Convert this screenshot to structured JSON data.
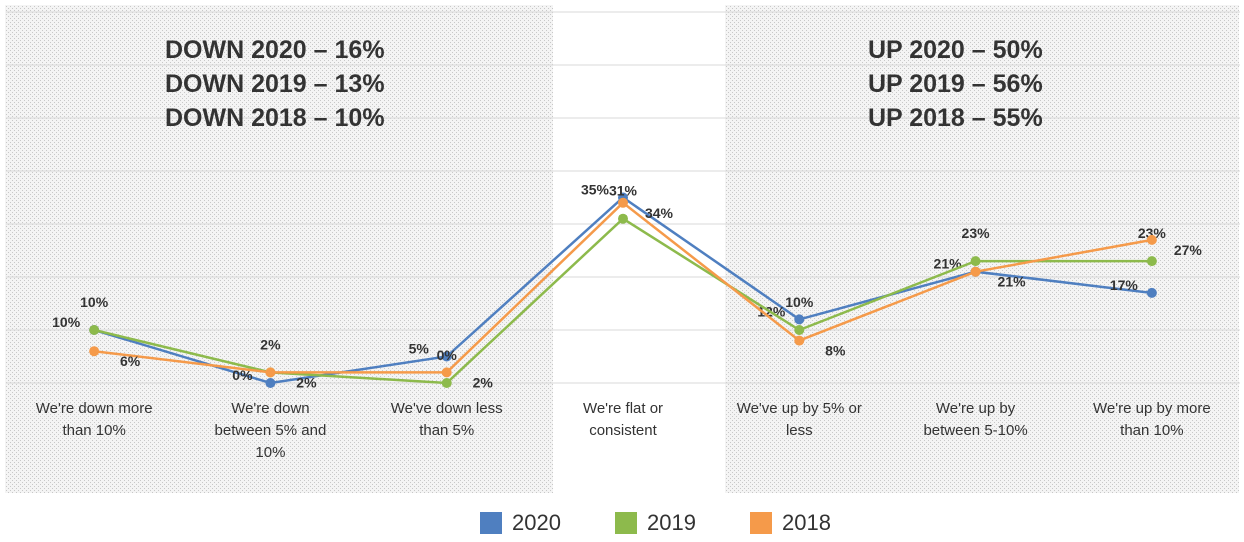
{
  "chart_data": {
    "type": "line",
    "categories": [
      "We're down more than 10%",
      "We're down between 5% and 10%",
      "We've down less than 5%",
      "We're flat or consistent",
      "We've up by 5% or less",
      "We're up by between 5-10%",
      "We're up by more than 10%"
    ],
    "series": [
      {
        "name": "2020",
        "color": "#4f7fc0",
        "values": [
          10,
          0,
          5,
          35,
          12,
          21,
          17
        ],
        "value_labels": [
          "10%",
          "0%",
          "5%",
          "35%",
          "12%",
          "21%",
          "17%"
        ]
      },
      {
        "name": "2019",
        "color": "#8dba4c",
        "values": [
          10,
          2,
          0,
          31,
          10,
          23,
          23
        ],
        "value_labels": [
          "10%",
          "2%",
          "0%",
          "31%",
          "10%",
          "23%",
          "23%"
        ]
      },
      {
        "name": "2018",
        "color": "#f59a4a",
        "values": [
          6,
          2,
          2,
          34,
          8,
          21,
          27
        ],
        "value_labels": [
          "6%",
          "2%",
          "2%",
          "34%",
          "8%",
          "21%",
          "27%"
        ]
      }
    ],
    "annotations": [
      {
        "text": "DOWN 2020 – 16%",
        "color": "#4f7fc0"
      },
      {
        "text": "DOWN 2019 – 13%",
        "color": "#8dba4c"
      },
      {
        "text": "DOWN 2018 – 10%",
        "color": "#f5b820"
      },
      {
        "text": "UP 2020 – 50%",
        "color": "#4f7fc0"
      },
      {
        "text": "UP 2019 – 56%",
        "color": "#8dba4c"
      },
      {
        "text": "UP 2018 – 55%",
        "color": "#f59a4a"
      }
    ],
    "ylim": [
      0,
      70
    ],
    "yticks": [
      0,
      10,
      20,
      30,
      40,
      50,
      60,
      70
    ],
    "grid": true,
    "legend": "bottom"
  }
}
